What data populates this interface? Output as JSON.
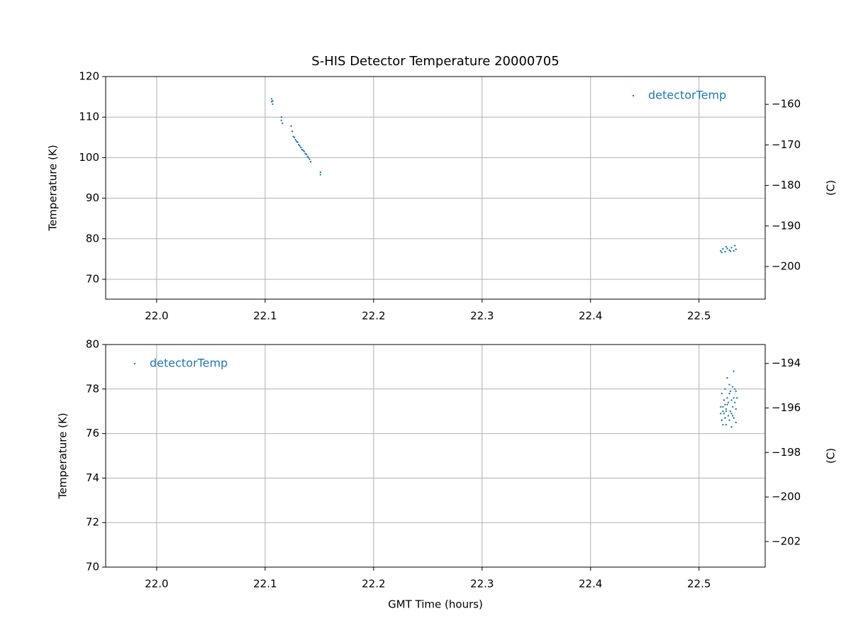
{
  "chart_data": [
    {
      "type": "scatter",
      "title": "S-HIS Detector Temperature 20000705",
      "ylabel": "Temperature (K)",
      "y2label": "(C)",
      "xlim": [
        21.953,
        22.561
      ],
      "xticks": [
        {
          "value": 22.0,
          "label": "22.0"
        },
        22.1,
        22.2,
        22.3,
        22.4,
        22.5
      ],
      "ylim": [
        65.1,
        120
      ],
      "yticks": [
        70,
        80,
        90,
        100,
        110,
        120
      ],
      "y2lim": [
        -208.05,
        -153.15
      ],
      "y2ticks": [
        {
          "value": -200,
          "label": "−200"
        },
        {
          "value": -190,
          "label": "−190"
        },
        {
          "value": -180,
          "label": "−180"
        },
        {
          "value": -170,
          "label": "−170"
        },
        {
          "value": -160,
          "label": "−160"
        }
      ],
      "grid": true,
      "legend": "upper right",
      "series": [
        {
          "name": "detectorTemp",
          "color": "#1f77b4",
          "x": [
            22.106,
            22.106,
            22.107,
            22.107,
            22.115,
            22.115,
            22.116,
            22.124,
            22.125,
            22.126,
            22.127,
            22.128,
            22.129,
            22.13,
            22.131,
            22.132,
            22.133,
            22.134,
            22.135,
            22.136,
            22.137,
            22.138,
            22.139,
            22.14,
            22.141,
            22.142,
            22.151,
            22.151,
            22.52,
            22.522,
            22.524,
            22.526,
            22.528,
            22.53,
            22.532,
            22.534,
            22.521,
            22.525,
            22.529,
            22.533
          ],
          "values": [
            114.5,
            113.8,
            113.2,
            114.0,
            110.0,
            109.2,
            108.5,
            107.8,
            106.5,
            105.2,
            105.0,
            104.4,
            104.0,
            103.8,
            103.2,
            102.9,
            102.5,
            102.0,
            101.8,
            101.5,
            101.0,
            100.8,
            100.3,
            100.0,
            99.6,
            99.0,
            96.4,
            95.8,
            77.0,
            77.5,
            76.8,
            77.6,
            77.2,
            77.8,
            77.0,
            77.4,
            76.6,
            78.0,
            76.9,
            78.3
          ]
        }
      ]
    },
    {
      "type": "scatter",
      "xlabel": "GMT Time (hours)",
      "ylabel": "Temperature (K)",
      "y2label": "(C)",
      "xlim": [
        21.953,
        22.561
      ],
      "xticks": [
        {
          "value": 22.0,
          "label": "22.0"
        },
        22.1,
        22.2,
        22.3,
        22.4,
        22.5
      ],
      "ylim": [
        70,
        80
      ],
      "yticks": [
        70,
        72,
        74,
        76,
        78,
        80
      ],
      "y2lim": [
        -203.15,
        -193.15
      ],
      "y2ticks": [
        {
          "value": -202,
          "label": "−202"
        },
        {
          "value": -200,
          "label": "−200"
        },
        {
          "value": -198,
          "label": "−198"
        },
        {
          "value": -196,
          "label": "−196"
        },
        {
          "value": -194,
          "label": "−194"
        }
      ],
      "grid": true,
      "legend": "upper left",
      "series": [
        {
          "name": "detectorTemp",
          "color": "#1f77b4",
          "x": [
            22.52,
            22.521,
            22.521,
            22.522,
            22.522,
            22.523,
            22.523,
            22.524,
            22.524,
            22.525,
            22.525,
            22.526,
            22.526,
            22.527,
            22.527,
            22.528,
            22.528,
            22.529,
            22.529,
            22.53,
            22.53,
            22.531,
            22.531,
            22.532,
            22.532,
            22.533,
            22.533,
            22.534,
            22.534,
            22.535,
            22.52,
            22.522,
            22.524,
            22.526,
            22.528,
            22.53,
            22.532,
            22.534,
            22.525,
            22.531
          ],
          "values": [
            77.2,
            76.6,
            77.8,
            77.0,
            76.4,
            77.5,
            76.9,
            78.0,
            77.3,
            76.4,
            77.1,
            78.5,
            77.6,
            76.8,
            77.4,
            78.2,
            76.6,
            77.0,
            77.9,
            77.5,
            76.3,
            78.1,
            77.2,
            78.8,
            76.7,
            77.4,
            78.0,
            77.1,
            76.5,
            77.6,
            76.9,
            77.2,
            76.7,
            77.3,
            77.8,
            76.9,
            77.6,
            77.9,
            77.0,
            76.8
          ]
        }
      ]
    }
  ]
}
